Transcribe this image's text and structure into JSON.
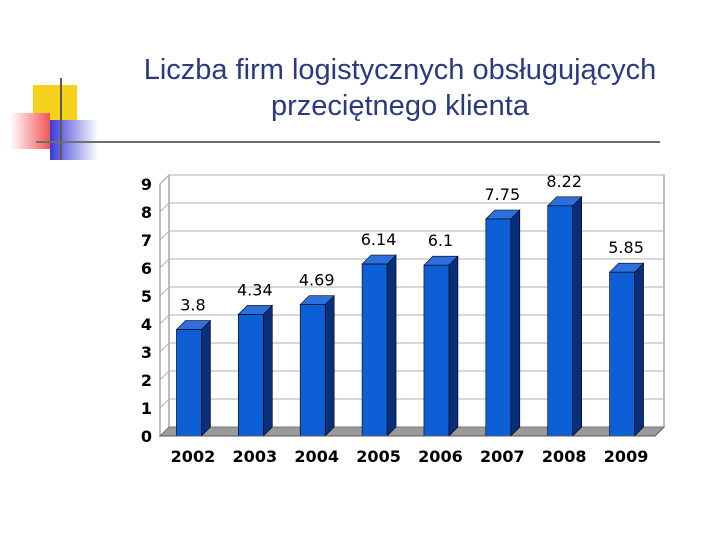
{
  "slide": {
    "title_line1": "Liczba firm logistycznych obsługujących",
    "title_line2": "przeciętnego klienta"
  },
  "colors": {
    "bar_front": "#0d5fd6",
    "bar_side": "#0a2f7a",
    "bar_top": "#2e6fe0",
    "title": "#2a3a80"
  },
  "chart_data": {
    "type": "bar",
    "title": "",
    "xlabel": "",
    "ylabel": "",
    "categories": [
      "2002",
      "2003",
      "2004",
      "2005",
      "2006",
      "2007",
      "2008",
      "2009"
    ],
    "values": [
      3.8,
      4.34,
      4.69,
      6.14,
      6.1,
      7.75,
      8.22,
      5.85
    ],
    "data_labels": [
      "3.8",
      "4.34",
      "4.69",
      "6.14",
      "6.1",
      "7.75",
      "8.22",
      "5.85"
    ],
    "ylim": [
      0,
      9
    ],
    "yticks": [
      "0",
      "1",
      "2",
      "3",
      "4",
      "5",
      "6",
      "7",
      "8",
      "9"
    ],
    "grid": true,
    "legend": "none",
    "style": "3d"
  }
}
